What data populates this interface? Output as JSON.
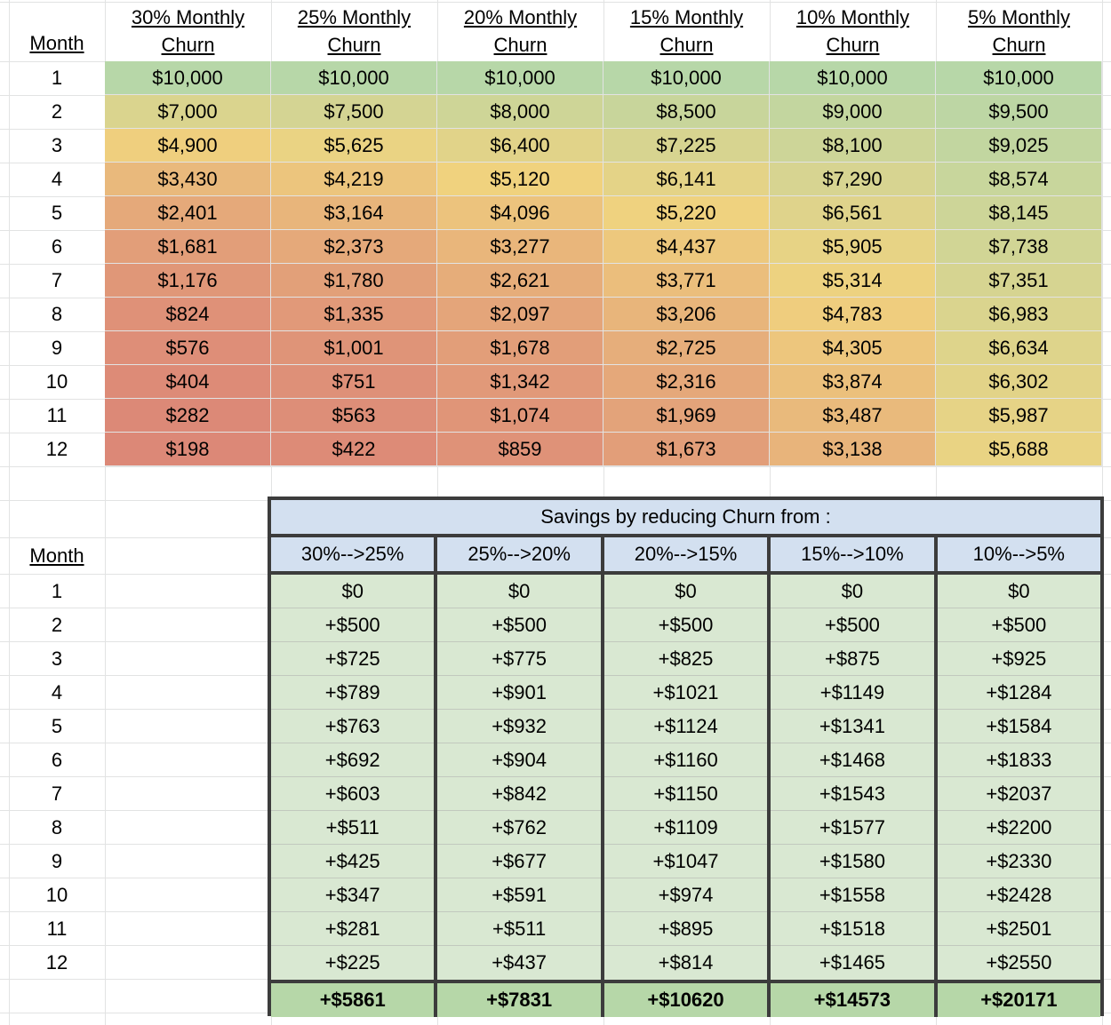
{
  "revenue_table": {
    "month_header": "Month",
    "columns": [
      "30% Monthly Churn",
      "25% Monthly Churn",
      "20% Monthly Churn",
      "15% Monthly Churn",
      "10% Monthly Churn",
      "5% Monthly Churn"
    ],
    "months": [
      "1",
      "2",
      "3",
      "4",
      "5",
      "6",
      "7",
      "8",
      "9",
      "10",
      "11",
      "12"
    ],
    "values": [
      [
        10000,
        10000,
        10000,
        10000,
        10000,
        10000
      ],
      [
        7000,
        7500,
        8000,
        8500,
        9000,
        9500
      ],
      [
        4900,
        5625,
        6400,
        7225,
        8100,
        9025
      ],
      [
        3430,
        4219,
        5120,
        6141,
        7290,
        8574
      ],
      [
        2401,
        3164,
        4096,
        5220,
        6561,
        8145
      ],
      [
        1681,
        2373,
        3277,
        4437,
        5905,
        7738
      ],
      [
        1176,
        1780,
        2621,
        3771,
        5314,
        7351
      ],
      [
        824,
        1335,
        2097,
        3206,
        4783,
        6983
      ],
      [
        576,
        1001,
        1678,
        2725,
        4305,
        6634
      ],
      [
        404,
        751,
        1342,
        2316,
        3874,
        6302
      ],
      [
        282,
        563,
        1074,
        1969,
        3487,
        5987
      ],
      [
        198,
        422,
        859,
        1673,
        3138,
        5688
      ]
    ],
    "color_scale": {
      "min_value": 198,
      "mid_value": 5099,
      "max_value": 10000,
      "min_color": "#DC8877",
      "mid_color": "#F0D27E",
      "max_color": "#B7D7A8"
    }
  },
  "savings_table": {
    "title": "Savings by reducing Churn from :",
    "month_header": "Month",
    "columns": [
      "30%-->25%",
      "25%-->20%",
      "20%-->15%",
      "15%-->10%",
      "10%-->5%"
    ],
    "months": [
      "1",
      "2",
      "3",
      "4",
      "5",
      "6",
      "7",
      "8",
      "9",
      "10",
      "11",
      "12"
    ],
    "values": [
      [
        0,
        0,
        0,
        0,
        0
      ],
      [
        500,
        500,
        500,
        500,
        500
      ],
      [
        725,
        775,
        825,
        875,
        925
      ],
      [
        789,
        901,
        1021,
        1149,
        1284
      ],
      [
        763,
        932,
        1124,
        1341,
        1584
      ],
      [
        692,
        904,
        1160,
        1468,
        1833
      ],
      [
        603,
        842,
        1150,
        1543,
        2037
      ],
      [
        511,
        762,
        1109,
        1577,
        2200
      ],
      [
        425,
        677,
        1047,
        1580,
        2330
      ],
      [
        347,
        591,
        974,
        1558,
        2428
      ],
      [
        281,
        511,
        895,
        1518,
        2501
      ],
      [
        225,
        437,
        814,
        1465,
        2550
      ]
    ],
    "totals": [
      5861,
      7831,
      10620,
      14573,
      20171
    ]
  },
  "colors": {
    "header_blue": "#D3E0F0",
    "cell_green": "#D9E8D2",
    "total_green": "#B6D7A8",
    "border_dark": "#3C3C3C",
    "gridline": "#E2E3E3",
    "gridline_on_green": "#C2C9BE"
  }
}
